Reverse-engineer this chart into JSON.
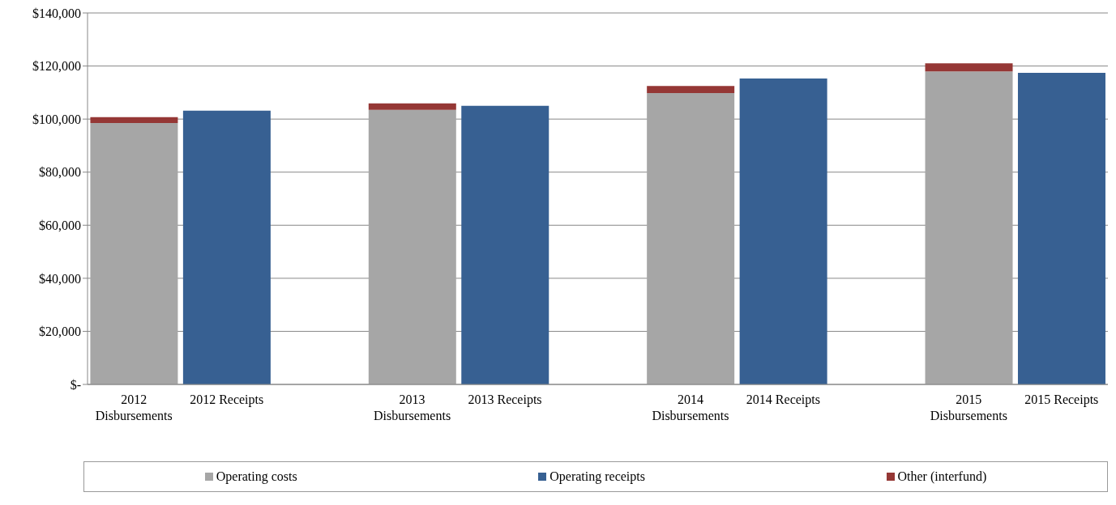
{
  "chart_data": {
    "type": "bar",
    "stacked": true,
    "categories": [
      "2012 Disbursements",
      "2012 Receipts",
      null,
      "2013 Disbursements",
      "2013 Receipts",
      null,
      "2014 Disbursements",
      "2014 Receipts",
      null,
      "2015 Disbursements",
      "2015 Receipts"
    ],
    "series": [
      {
        "name": "Operating costs",
        "color": "#a6a6a6",
        "values": [
          98500,
          null,
          null,
          103500,
          null,
          null,
          109800,
          null,
          null,
          118000,
          null
        ]
      },
      {
        "name": "Other (interfund)",
        "color": "#953735",
        "values": [
          2200,
          null,
          null,
          2400,
          null,
          null,
          2700,
          null,
          null,
          3000,
          null
        ]
      },
      {
        "name": "Operating receipts",
        "color": "#376092",
        "values": [
          null,
          103200,
          null,
          null,
          105000,
          null,
          null,
          115300,
          null,
          null,
          117400
        ]
      }
    ],
    "ylim": [
      0,
      140000
    ],
    "yticks": [
      {
        "value": 0,
        "label": "$-"
      },
      {
        "value": 20000,
        "label": "$20,000"
      },
      {
        "value": 40000,
        "label": "$40,000"
      },
      {
        "value": 60000,
        "label": "$60,000"
      },
      {
        "value": 80000,
        "label": "$80,000"
      },
      {
        "value": 100000,
        "label": "$100,000"
      },
      {
        "value": 120000,
        "label": "$120,000"
      },
      {
        "value": 140000,
        "label": "$140,000"
      }
    ],
    "grid": "y",
    "legend": "bottom"
  }
}
